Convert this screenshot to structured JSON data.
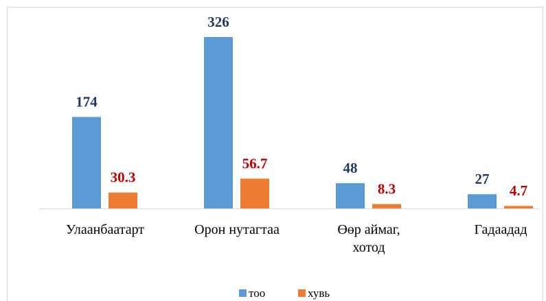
{
  "chart_data": {
    "type": "bar",
    "categories": [
      "Улаанбаатарт",
      "Орон нутагтаа",
      "Өөр аймаг, хотод",
      "Гадаадад"
    ],
    "series": [
      {
        "name": "тоо",
        "color": "#5b9bd5",
        "values": [
          174,
          326,
          48,
          27
        ]
      },
      {
        "name": "хувь",
        "color": "#ed7d31",
        "values": [
          30.3,
          56.7,
          8.3,
          4.7
        ]
      }
    ],
    "legend": "bottom"
  }
}
